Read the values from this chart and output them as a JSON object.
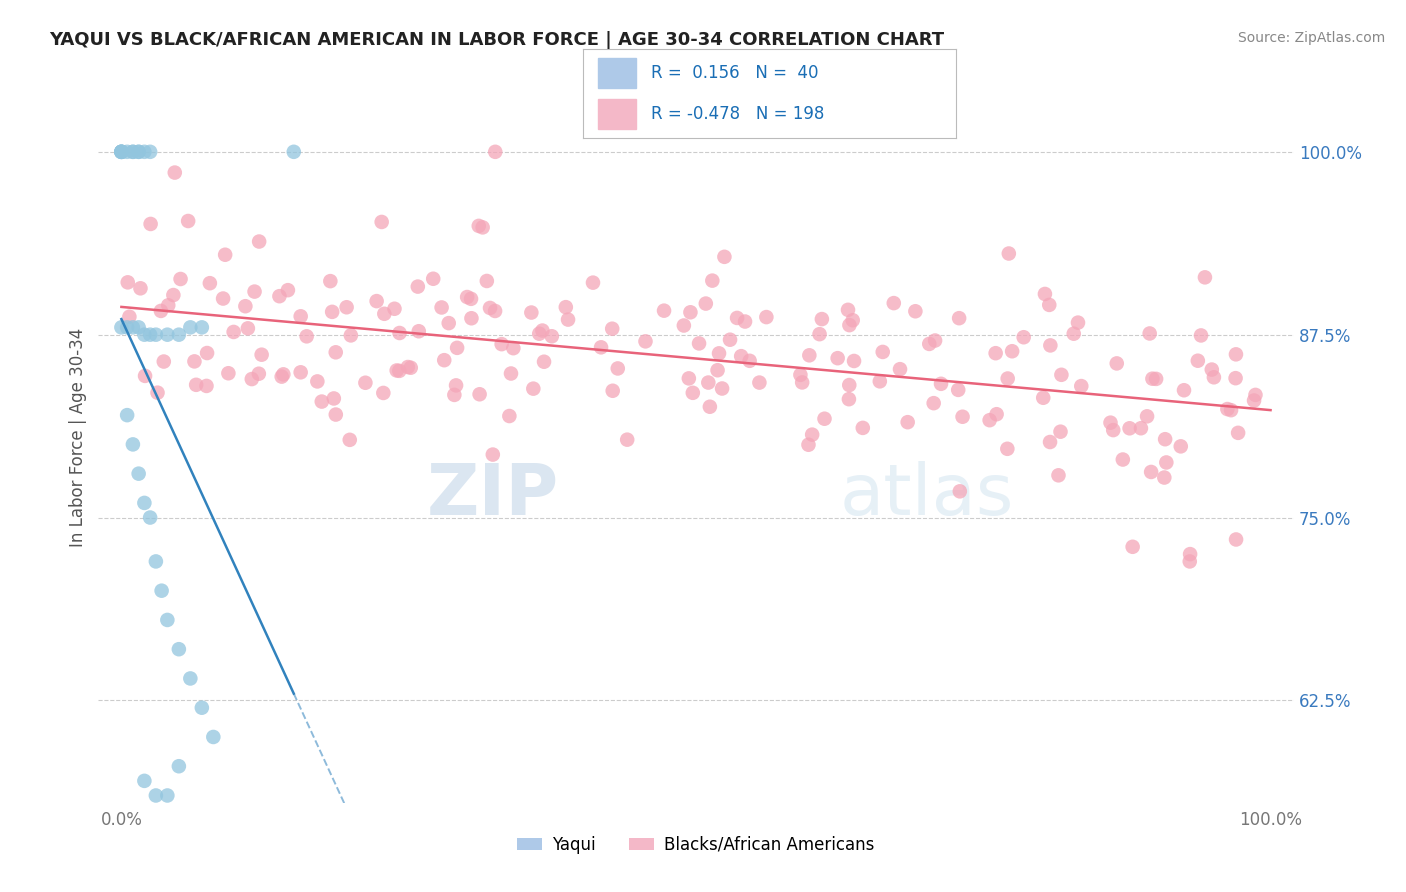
{
  "title": "YAQUI VS BLACK/AFRICAN AMERICAN IN LABOR FORCE | AGE 30-34 CORRELATION CHART",
  "source_text": "Source: ZipAtlas.com",
  "ylabel": "In Labor Force | Age 30-34",
  "r_yaqui": 0.156,
  "n_yaqui": 40,
  "r_black": -0.478,
  "n_black": 198,
  "yaqui_color": "#92c5de",
  "yaqui_edge": "#6baed6",
  "black_color": "#f4a6b8",
  "black_edge": "#e07090",
  "yaqui_line_color": "#3182bd",
  "black_line_color": "#e8637a",
  "background_color": "#ffffff",
  "legend_label_yaqui": "Yaqui",
  "legend_label_black": "Blacks/African Americans",
  "watermark_zip": "ZIP",
  "watermark_atlas": "atlas",
  "xlim": [
    -0.02,
    1.02
  ],
  "ylim": [
    0.555,
    1.055
  ],
  "yticks": [
    0.625,
    0.75,
    0.875,
    1.0
  ],
  "ytick_labels": [
    "62.5%",
    "75.0%",
    "87.5%",
    "100.0%"
  ],
  "xticks": [
    0.0,
    1.0
  ],
  "xtick_labels": [
    "0.0%",
    "100.0%"
  ],
  "grid_color": "#cccccc",
  "tick_color": "#777777",
  "title_color": "#222222",
  "source_color": "#888888",
  "legend_r_n_color": "#1a6eb5",
  "legend_box_color": "#dddddd"
}
